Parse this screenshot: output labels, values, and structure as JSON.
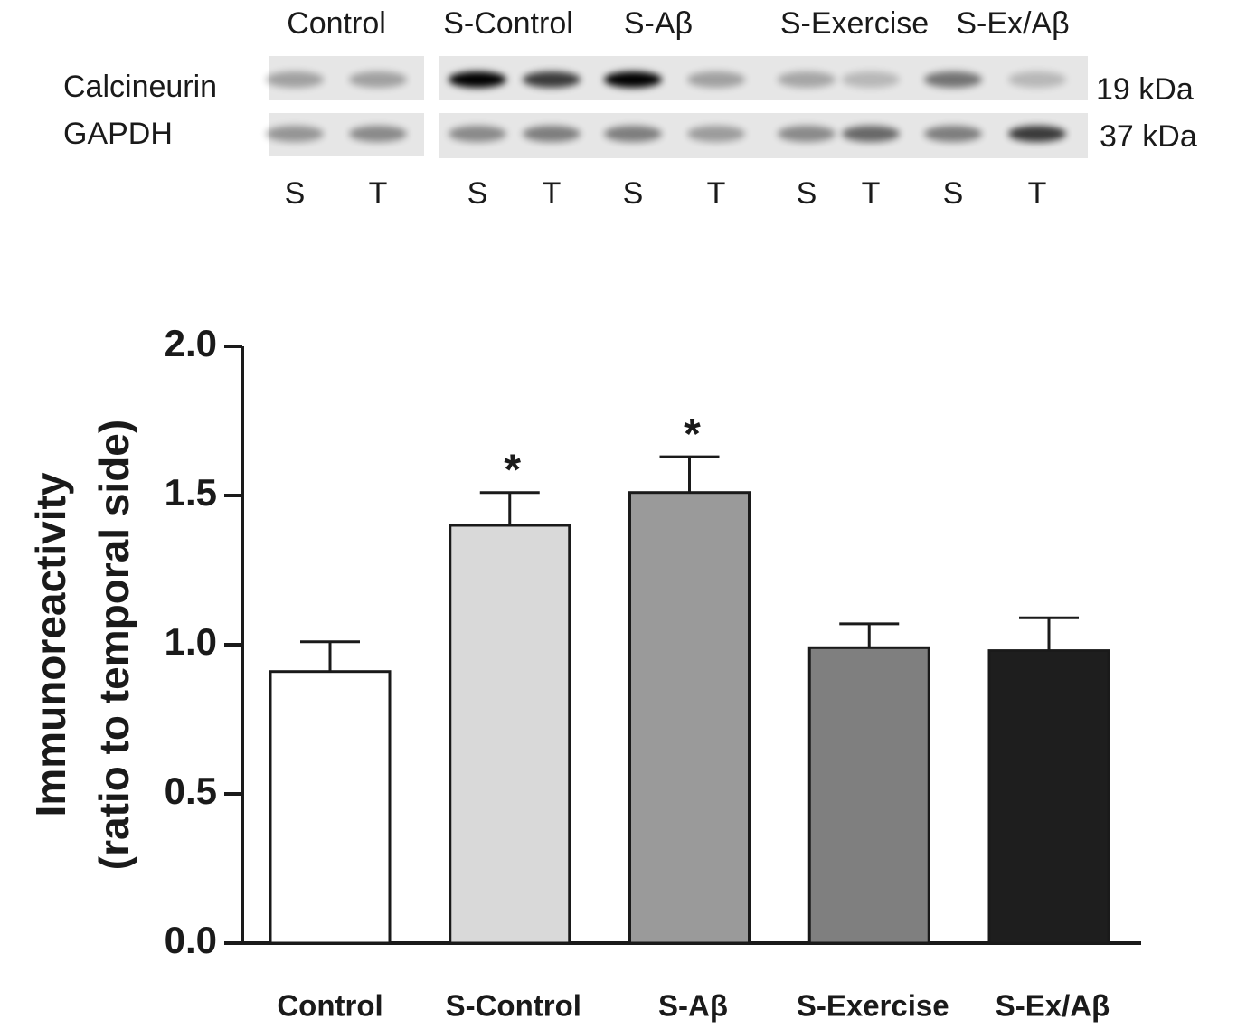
{
  "blot": {
    "groups": [
      "Control",
      "S-Control",
      "S-Aβ",
      "S-Exercise",
      "S-Ex/Aβ"
    ],
    "rows": [
      {
        "name": "Calcineurin",
        "size": "19 kDa"
      },
      {
        "name": "GAPDH",
        "size": "37 kDa"
      }
    ],
    "lanes": [
      "S",
      "T",
      "S",
      "T",
      "S",
      "T",
      "S",
      "T",
      "S",
      "T"
    ]
  },
  "chart_data": {
    "type": "bar",
    "y_label": [
      "Immunoreactivity",
      "(ratio to temporal side)"
    ],
    "categories": [
      "Control",
      "S-Control",
      "S-Aβ",
      "S-Exercise",
      "S-Ex/Aβ"
    ],
    "values": [
      0.91,
      1.4,
      1.51,
      0.99,
      0.98
    ],
    "errors": [
      0.1,
      0.11,
      0.12,
      0.08,
      0.11
    ],
    "colors": [
      "#ffffff",
      "#d9d9d9",
      "#9a9a9a",
      "#7f7f7f",
      "#1e1e1e"
    ],
    "markers": [
      null,
      "*",
      "*",
      null,
      null
    ],
    "ylim": [
      0,
      2
    ],
    "yticks": [
      {
        "value": 0,
        "label": "0.0"
      },
      0.5,
      {
        "value": 1,
        "label": "1.0"
      },
      1.5,
      {
        "value": 2,
        "label": "2.0"
      }
    ]
  }
}
